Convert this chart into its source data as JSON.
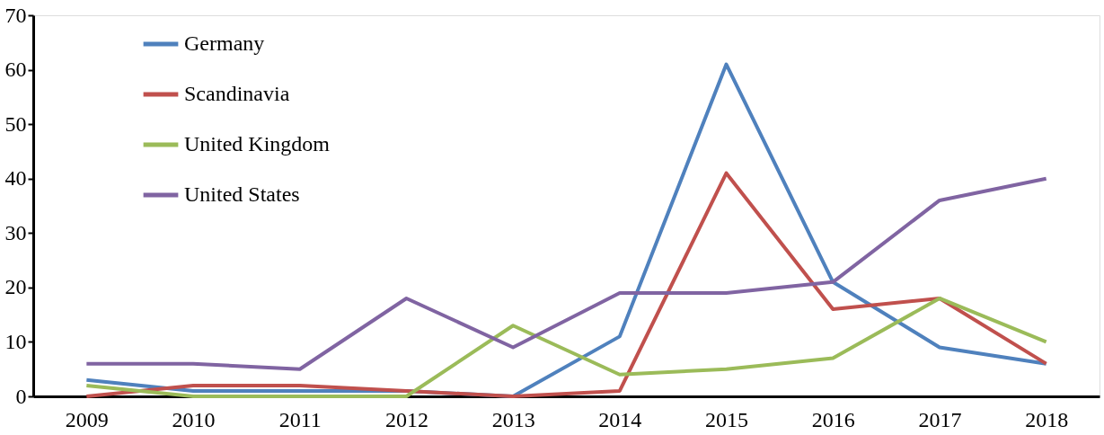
{
  "chart_data": {
    "type": "line",
    "categories": [
      "2009",
      "2010",
      "2011",
      "2012",
      "2013",
      "2014",
      "2015",
      "2016",
      "2017",
      "2018"
    ],
    "series": [
      {
        "name": "Germany",
        "color": "#4f81bd",
        "values": [
          3,
          1,
          1,
          1,
          0,
          11,
          61,
          21,
          9,
          6
        ]
      },
      {
        "name": "Scandinavia",
        "color": "#c0504d",
        "values": [
          0,
          2,
          2,
          1,
          0,
          1,
          41,
          16,
          18,
          6
        ]
      },
      {
        "name": "United Kingdom",
        "color": "#9bbb59",
        "values": [
          2,
          0,
          0,
          0,
          13,
          4,
          5,
          7,
          18,
          10
        ]
      },
      {
        "name": "United States",
        "color": "#8064a2",
        "values": [
          6,
          6,
          5,
          18,
          9,
          19,
          19,
          21,
          36,
          40
        ]
      }
    ],
    "ylim": [
      0,
      70
    ],
    "yticks": [
      0,
      10,
      20,
      30,
      40,
      50,
      60,
      70
    ],
    "grid": false,
    "legend": "top left",
    "marker": "none",
    "line_style": "solid"
  }
}
